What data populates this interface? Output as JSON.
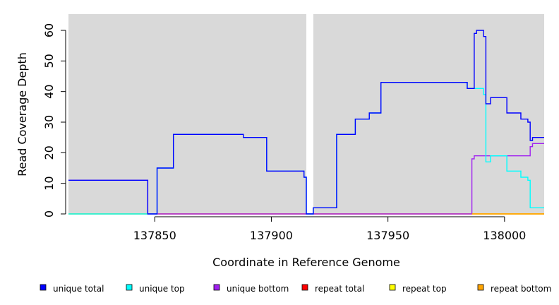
{
  "chart_data": {
    "type": "line",
    "step": true,
    "xlabel": "Coordinate in Reference Genome",
    "ylabel": "Read Coverage Depth",
    "xlim": [
      137813,
      138017
    ],
    "ylim": [
      0,
      65
    ],
    "xticks": [
      137850,
      137900,
      137950,
      138000
    ],
    "xtick_labels": [
      "137850",
      "137900",
      "137950",
      "138000"
    ],
    "yticks": [
      0,
      10,
      20,
      30,
      40,
      50,
      60
    ],
    "ytick_labels": [
      "0",
      "10",
      "20",
      "30",
      "40",
      "50",
      "60"
    ],
    "background_regions": [
      [
        137813,
        137915
      ],
      [
        137918,
        138017
      ]
    ],
    "background_color": "#d9d9d9",
    "legend_placement": "bottom",
    "series": [
      {
        "name": "repeat total",
        "color": "#ff0000",
        "points": [
          [
            137813,
            0
          ],
          [
            138017,
            0
          ]
        ]
      },
      {
        "name": "repeat top",
        "color": "#ffff00",
        "points": [
          [
            137813,
            0
          ],
          [
            138017,
            0
          ]
        ]
      },
      {
        "name": "unique bottom",
        "color": "#a020f0",
        "points": [
          [
            137813,
            11
          ],
          [
            137847,
            0
          ],
          [
            137986,
            18
          ],
          [
            137987,
            19
          ],
          [
            138011,
            22
          ],
          [
            138012,
            23
          ],
          [
            138017,
            23
          ]
        ]
      },
      {
        "name": "unique top",
        "color": "#00ffff",
        "points": [
          [
            137813,
            0
          ],
          [
            137847,
            0
          ],
          [
            137851,
            15
          ],
          [
            137858,
            26
          ],
          [
            137888,
            25
          ],
          [
            137898,
            14
          ],
          [
            137914,
            12
          ],
          [
            137915,
            0
          ],
          [
            137918,
            2
          ],
          [
            137928,
            26
          ],
          [
            137936,
            31
          ],
          [
            137942,
            33
          ],
          [
            137947,
            43
          ],
          [
            137984,
            41
          ],
          [
            137991,
            39
          ],
          [
            137992,
            17
          ],
          [
            137994,
            19
          ],
          [
            138001,
            14
          ],
          [
            138007,
            12
          ],
          [
            138010,
            11
          ],
          [
            138011,
            2
          ],
          [
            138017,
            2
          ]
        ]
      },
      {
        "name": "unique total",
        "color": "#0000ff",
        "points": [
          [
            137813,
            11
          ],
          [
            137847,
            0
          ],
          [
            137851,
            15
          ],
          [
            137858,
            26
          ],
          [
            137888,
            25
          ],
          [
            137898,
            14
          ],
          [
            137914,
            12
          ],
          [
            137915,
            0
          ],
          [
            137918,
            2
          ],
          [
            137928,
            26
          ],
          [
            137936,
            31
          ],
          [
            137942,
            33
          ],
          [
            137947,
            43
          ],
          [
            137984,
            41
          ],
          [
            137987,
            59
          ],
          [
            137988,
            60
          ],
          [
            137991,
            58
          ],
          [
            137992,
            36
          ],
          [
            137994,
            38
          ],
          [
            138001,
            33
          ],
          [
            138007,
            31
          ],
          [
            138010,
            30
          ],
          [
            138011,
            24
          ],
          [
            138012,
            25
          ],
          [
            138017,
            25
          ]
        ]
      },
      {
        "name": "repeat bottom",
        "color": "#ffa500",
        "points": [
          [
            137986,
            0
          ],
          [
            138017,
            0
          ]
        ]
      }
    ],
    "legend": [
      {
        "label": "unique total",
        "color": "#0000ff"
      },
      {
        "label": "unique top",
        "color": "#00ffff"
      },
      {
        "label": "unique bottom",
        "color": "#a020f0"
      },
      {
        "label": "repeat total",
        "color": "#ff0000"
      },
      {
        "label": "repeat top",
        "color": "#ffff00"
      },
      {
        "label": "repeat bottom",
        "color": "#ffa500"
      }
    ]
  }
}
